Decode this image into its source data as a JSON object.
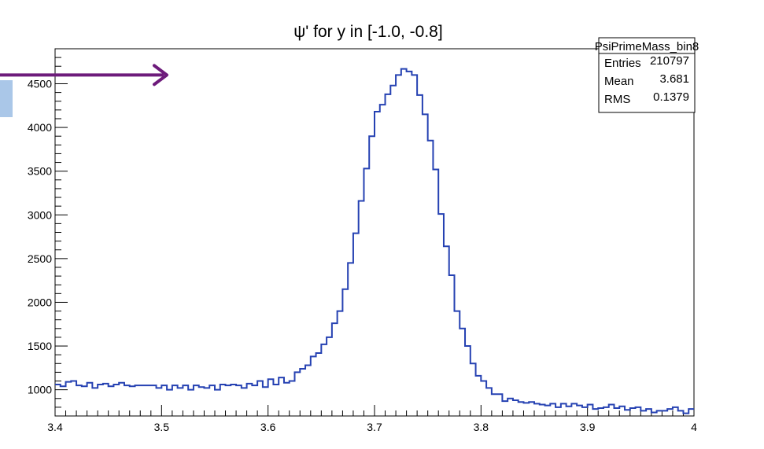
{
  "chart_data": {
    "type": "line",
    "step": true,
    "title": "ψ' for y in [-1.0, -0.8]",
    "xlabel": "",
    "ylabel": "",
    "xlim": [
      3.4,
      4.0
    ],
    "ylim": [
      700,
      4900
    ],
    "x_ticks": [
      3.4,
      3.5,
      3.6,
      3.7,
      3.8,
      3.9,
      4.0
    ],
    "x_tick_labels": [
      "3.4",
      "3.5",
      "3.6",
      "3.7",
      "3.8",
      "3.9",
      "4"
    ],
    "y_ticks": [
      1000,
      1500,
      2000,
      2500,
      3000,
      3500,
      4000,
      4500
    ],
    "y_tick_labels": [
      "1000",
      "1500",
      "2000",
      "2500",
      "3000",
      "3500",
      "4000",
      "4500"
    ],
    "grid": false,
    "bin_width": 0.005,
    "x": [
      3.4,
      3.405,
      3.41,
      3.415,
      3.42,
      3.425,
      3.43,
      3.435,
      3.44,
      3.445,
      3.45,
      3.455,
      3.46,
      3.465,
      3.47,
      3.475,
      3.48,
      3.485,
      3.49,
      3.495,
      3.5,
      3.505,
      3.51,
      3.515,
      3.52,
      3.525,
      3.53,
      3.535,
      3.54,
      3.545,
      3.55,
      3.555,
      3.56,
      3.565,
      3.57,
      3.575,
      3.58,
      3.585,
      3.59,
      3.595,
      3.6,
      3.605,
      3.61,
      3.615,
      3.62,
      3.625,
      3.63,
      3.635,
      3.64,
      3.645,
      3.65,
      3.655,
      3.66,
      3.665,
      3.67,
      3.675,
      3.68,
      3.685,
      3.69,
      3.695,
      3.7,
      3.705,
      3.71,
      3.715,
      3.72,
      3.725,
      3.73,
      3.735,
      3.74,
      3.745,
      3.75,
      3.755,
      3.76,
      3.765,
      3.77,
      3.775,
      3.78,
      3.785,
      3.79,
      3.795,
      3.8,
      3.805,
      3.81,
      3.815,
      3.82,
      3.825,
      3.83,
      3.835,
      3.84,
      3.845,
      3.85,
      3.855,
      3.86,
      3.865,
      3.87,
      3.875,
      3.88,
      3.885,
      3.89,
      3.895,
      3.9,
      3.905,
      3.91,
      3.915,
      3.92,
      3.925,
      3.93,
      3.935,
      3.94,
      3.945,
      3.95,
      3.955,
      3.96,
      3.965,
      3.97,
      3.975,
      3.98,
      3.985,
      3.99,
      3.995
    ],
    "series": [
      {
        "values": [
          1060,
          1040,
          1090,
          1100,
          1050,
          1040,
          1080,
          1020,
          1060,
          1070,
          1040,
          1060,
          1080,
          1050,
          1040,
          1050,
          1050,
          1050,
          1050,
          1020,
          1050,
          1000,
          1050,
          1020,
          1050,
          1000,
          1050,
          1030,
          1020,
          1050,
          1000,
          1060,
          1050,
          1060,
          1050,
          1020,
          1070,
          1050,
          1100,
          1030,
          1120,
          1060,
          1140,
          1080,
          1100,
          1200,
          1240,
          1280,
          1380,
          1420,
          1520,
          1600,
          1760,
          1900,
          2150,
          2450,
          2790,
          3160,
          3530,
          3900,
          4180,
          4260,
          4380,
          4480,
          4600,
          4670,
          4640,
          4600,
          4370,
          4150,
          3850,
          3520,
          3010,
          2640,
          2310,
          1900,
          1700,
          1500,
          1300,
          1160,
          1100,
          1020,
          950,
          950,
          870,
          900,
          880,
          860,
          850,
          860,
          840,
          830,
          820,
          840,
          800,
          840,
          810,
          840,
          820,
          800,
          830,
          780,
          790,
          800,
          830,
          790,
          810,
          770,
          790,
          800,
          760,
          780,
          740,
          760,
          760,
          780,
          800,
          760,
          730,
          780
        ]
      }
    ],
    "series_color": "#2541b2",
    "stats_box": {
      "name": "PsiPrimeMass_bin8",
      "rows": [
        {
          "label": "Entries",
          "value": "210797"
        },
        {
          "label": "Mean",
          "value": "3.681"
        },
        {
          "label": "RMS",
          "value": "0.1379"
        }
      ]
    },
    "annotation_arrow": {
      "color": "#6d1b7b",
      "y_value": 4600
    }
  }
}
